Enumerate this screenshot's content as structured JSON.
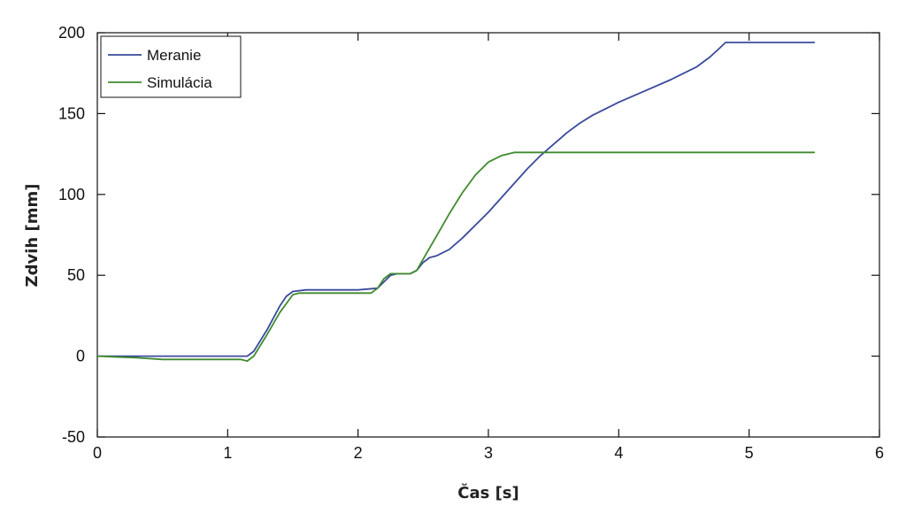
{
  "chart_data": {
    "type": "line",
    "xlabel": "Čas [s]",
    "ylabel": "Zdvih [mm]",
    "xlim": [
      0,
      6
    ],
    "ylim": [
      -50,
      200
    ],
    "xticks": [
      0,
      1,
      2,
      3,
      4,
      5,
      6
    ],
    "yticks": [
      -50,
      0,
      50,
      100,
      150,
      200
    ],
    "grid": false,
    "legend_position": "top-left",
    "series": [
      {
        "name": "Meranie",
        "color": "#3a4a9c",
        "x": [
          0,
          0.5,
          1.0,
          1.15,
          1.2,
          1.3,
          1.4,
          1.45,
          1.5,
          1.6,
          1.8,
          2.0,
          2.15,
          2.2,
          2.25,
          2.3,
          2.4,
          2.45,
          2.5,
          2.55,
          2.6,
          2.7,
          2.8,
          2.9,
          3.0,
          3.1,
          3.2,
          3.3,
          3.4,
          3.5,
          3.6,
          3.7,
          3.8,
          3.9,
          4.0,
          4.2,
          4.4,
          4.6,
          4.7,
          4.78,
          4.82,
          4.9,
          5.0,
          5.2,
          5.5
        ],
        "y": [
          0,
          0,
          0,
          0,
          3,
          16,
          31,
          37,
          40,
          41,
          41,
          41,
          42,
          46,
          50,
          51,
          51,
          53,
          58,
          61,
          62,
          66,
          73,
          81,
          89,
          98,
          107,
          116,
          124,
          131,
          138,
          144,
          149,
          153,
          157,
          164,
          171,
          179,
          185,
          191,
          194,
          194,
          194,
          194,
          194
        ]
      },
      {
        "name": "Simulácia",
        "color": "#3f8a2e",
        "x": [
          0,
          0.3,
          0.5,
          0.8,
          1.0,
          1.1,
          1.15,
          1.2,
          1.3,
          1.4,
          1.5,
          1.55,
          1.6,
          1.8,
          2.0,
          2.1,
          2.15,
          2.2,
          2.25,
          2.3,
          2.4,
          2.45,
          2.5,
          2.6,
          2.7,
          2.8,
          2.9,
          3.0,
          3.1,
          3.15,
          3.2,
          3.25,
          3.5,
          4.0,
          4.5,
          5.0,
          5.5
        ],
        "y": [
          0,
          -1,
          -2,
          -2,
          -2,
          -2,
          -3,
          0,
          13,
          27,
          38,
          39,
          39,
          39,
          39,
          39,
          42,
          48,
          51,
          51,
          51,
          53,
          60,
          74,
          88,
          101,
          112,
          120,
          124,
          125,
          126,
          126,
          126,
          126,
          126,
          126,
          126
        ]
      }
    ]
  }
}
